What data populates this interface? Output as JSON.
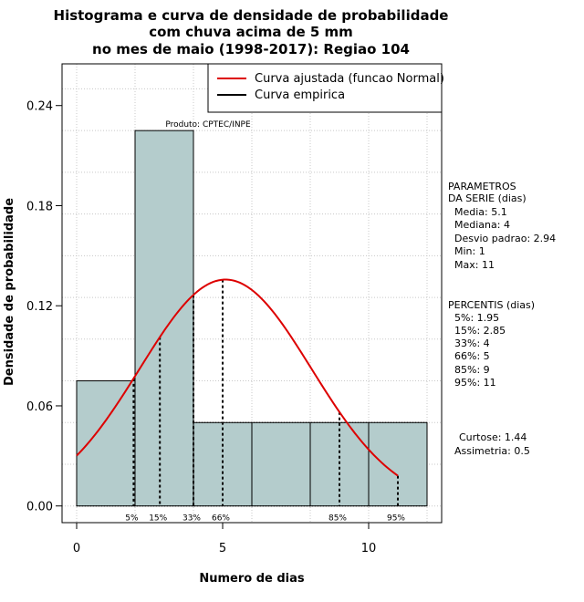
{
  "chart_data": {
    "type": "bar",
    "title_lines": [
      "Histograma e curva de densidade de probabilidade",
      "com chuva acima de 5 mm",
      "no mes de maio (1998-2017): Regiao 104"
    ],
    "xlabel": "Numero de dias",
    "ylabel": "Densidade de probabilidade",
    "xlim": [
      -0.5,
      12.5
    ],
    "ylim": [
      -0.01,
      0.265
    ],
    "x_ticks": [
      0,
      5,
      10
    ],
    "y_ticks": [
      0.0,
      0.06,
      0.12,
      0.18,
      0.24
    ],
    "y_tick_labels": [
      "0.00",
      "0.06",
      "0.12",
      "0.18",
      "0.24"
    ],
    "grid": true,
    "bins": [
      {
        "x0": 0,
        "x1": 2,
        "value": 0.075
      },
      {
        "x0": 2,
        "x1": 4,
        "value": 0.225
      },
      {
        "x0": 4,
        "x1": 6,
        "value": 0.05
      },
      {
        "x0": 6,
        "x1": 8,
        "value": 0.05
      },
      {
        "x0": 8,
        "x1": 10,
        "value": 0.05
      },
      {
        "x0": 10,
        "x1": 12,
        "value": 0.05
      }
    ],
    "fill_color": "#b4cccc",
    "normal_curve": {
      "mean": 5.1,
      "sd": 2.94,
      "from": 0,
      "to": 11,
      "color": "#dd0000"
    },
    "percentile_markers": [
      {
        "label": "5%",
        "x": 1.95
      },
      {
        "label": "15%",
        "x": 2.85
      },
      {
        "label": "33%",
        "x": 4
      },
      {
        "label": "66%",
        "x": 5
      },
      {
        "label": "85%",
        "x": 9
      },
      {
        "label": "95%",
        "x": 11
      }
    ],
    "legend": {
      "position": "top-right",
      "entries": [
        {
          "label": "Curva ajustada (funcao Normal)",
          "color": "#dd0000"
        },
        {
          "label": "Curva empirica",
          "color": "#000000"
        }
      ]
    },
    "credit": "Produto: CPTEC/INPE"
  },
  "parameters": {
    "heading_lines": [
      "PARAMETROS",
      "DA SERIE (dias)"
    ],
    "lines": [
      "Media: 5.1",
      "Mediana: 4",
      "Desvio padrao: 2.94",
      "Min: 1",
      "Max: 11"
    ]
  },
  "percentiles": {
    "heading": "PERCENTIS (dias)",
    "lines": [
      "5%: 1.95",
      "15%: 2.85",
      "33%: 4",
      "66%: 5",
      "85%: 9",
      "95%: 11"
    ]
  },
  "shape": {
    "lines": [
      "Curtose: 1.44",
      "Assimetria: 0.5"
    ]
  }
}
